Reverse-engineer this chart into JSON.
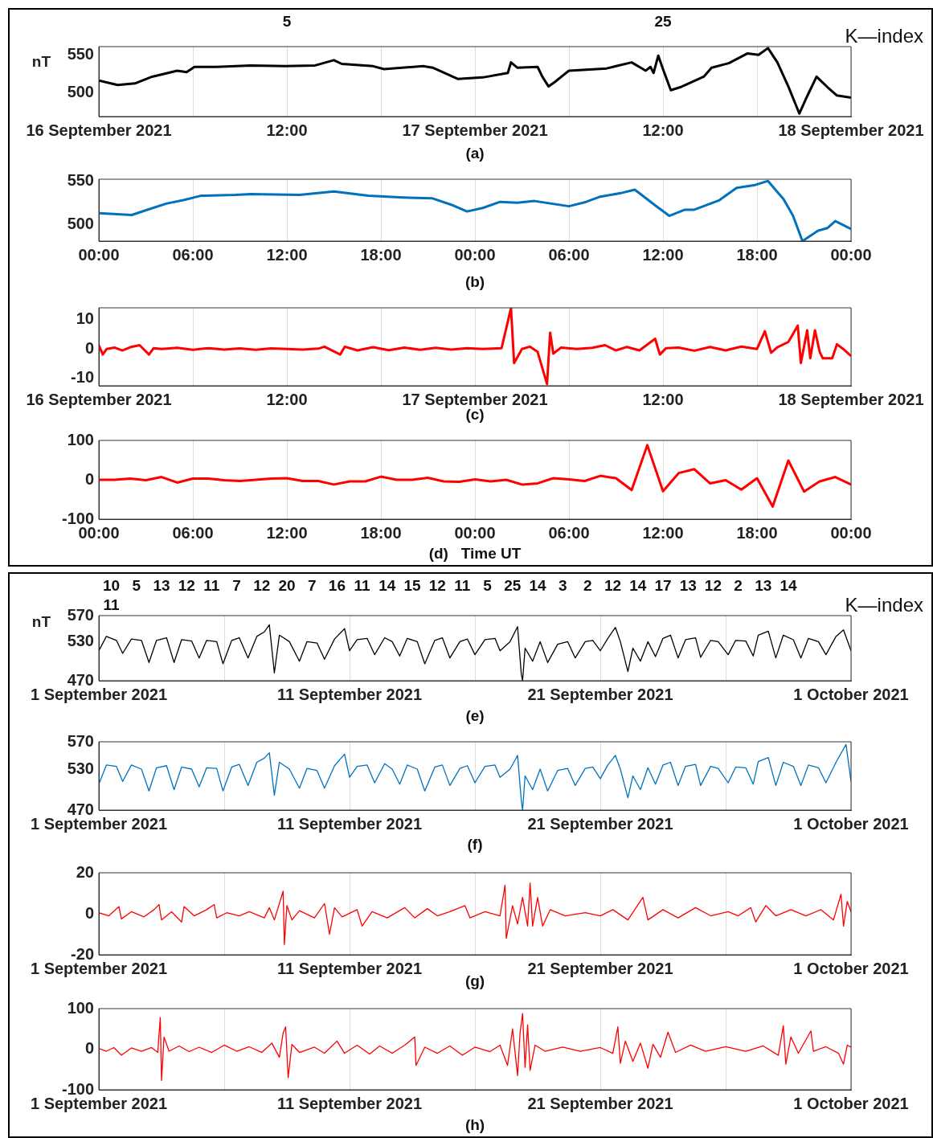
{
  "chart_data": [
    {
      "type": "line",
      "color": "#000000",
      "ylabel": "nT",
      "xlabel": "(a)",
      "grid": "x",
      "xlim": [
        "2021-09-16",
        "2021-09-18"
      ],
      "ylim": [
        468,
        561
      ],
      "yticks": [
        500,
        550
      ],
      "xticks": [
        {
          "value": "2021-09-16",
          "label": "16 September 2021"
        },
        {
          "value": "2021-09-16T06:00",
          "label": null
        },
        {
          "value": "2021-09-16T12:00",
          "label": "12:00"
        },
        {
          "value": "2021-09-16T18:00",
          "label": null
        },
        {
          "value": "2021-09-17",
          "label": "17 September 2021"
        },
        {
          "value": "2021-09-17T06:00",
          "label": null
        },
        {
          "value": "2021-09-17T12:00",
          "label": "12:00"
        },
        {
          "value": "2021-09-17T18:00",
          "label": null
        },
        {
          "value": "2021-09-18",
          "label": "18 September 2021"
        }
      ],
      "annotations": [
        "K—index",
        "5",
        "25"
      ],
      "x": [
        "2021-09-16T00:00",
        "2021-09-16T01:12",
        "2021-09-16T02:18",
        "2021-09-16T03:24",
        "2021-09-16T05:00",
        "2021-09-16T05:36",
        "2021-09-16T06:06",
        "2021-09-16T07:30",
        "2021-09-16T09:42",
        "2021-09-16T11:54",
        "2021-09-16T13:48",
        "2021-09-16T15:00",
        "2021-09-16T15:30",
        "2021-09-16T17:30",
        "2021-09-16T18:12",
        "2021-09-16T20:42",
        "2021-09-16T21:18",
        "2021-09-16T22:54",
        "2021-09-17T00:30",
        "2021-09-17T02:06",
        "2021-09-17T02:18",
        "2021-09-17T02:42",
        "2021-09-17T04:00",
        "2021-09-17T04:18",
        "2021-09-17T04:42",
        "2021-09-17T05:06",
        "2021-09-17T06:00",
        "2021-09-17T08:24",
        "2021-09-17T10:00",
        "2021-09-17T10:54",
        "2021-09-17T11:12",
        "2021-09-17T11:24",
        "2021-09-17T11:42",
        "2021-09-17T12:00",
        "2021-09-17T12:30",
        "2021-09-17T13:06",
        "2021-09-17T14:36",
        "2021-09-17T15:06",
        "2021-09-17T16:12",
        "2021-09-17T17:24",
        "2021-09-17T18:06",
        "2021-09-17T18:42",
        "2021-09-17T19:18",
        "2021-09-17T20:00",
        "2021-09-17T20:42",
        "2021-09-17T21:12",
        "2021-09-17T21:48",
        "2021-09-17T22:30",
        "2021-09-17T23:06",
        "2021-09-18T00:00"
      ],
      "values": [
        516,
        510,
        512,
        521,
        529,
        527,
        534,
        534,
        536,
        535,
        536,
        543,
        538,
        535,
        531,
        535,
        533,
        518,
        520,
        526,
        540,
        533,
        534,
        521,
        508,
        514,
        529,
        532,
        540,
        529,
        534,
        526,
        549,
        531,
        503,
        507,
        521,
        533,
        539,
        552,
        550,
        559,
        540,
        508,
        472,
        495,
        521,
        507,
        496,
        493
      ]
    },
    {
      "type": "line",
      "color": "#0072bd",
      "xlabel": "(b)",
      "grid": "x",
      "xlim": [
        "2021-09-16",
        "2021-09-18"
      ],
      "ylim": [
        481,
        552
      ],
      "yticks": [
        500,
        550
      ],
      "xticks": [
        {
          "value": "2021-09-16T00:00",
          "label": "00:00"
        },
        {
          "value": "2021-09-16T06:00",
          "label": "06:00"
        },
        {
          "value": "2021-09-16T12:00",
          "label": "12:00"
        },
        {
          "value": "2021-09-16T18:00",
          "label": "18:00"
        },
        {
          "value": "2021-09-17T00:00",
          "label": "00:00"
        },
        {
          "value": "2021-09-17T06:00",
          "label": "06:00"
        },
        {
          "value": "2021-09-17T12:00",
          "label": "12:00"
        },
        {
          "value": "2021-09-17T18:00",
          "label": "18:00"
        },
        {
          "value": "2021-09-18T00:00",
          "label": "00:00"
        }
      ],
      "x": [
        "2021-09-16T00:00",
        "2021-09-16T02:06",
        "2021-09-16T03:06",
        "2021-09-16T04:18",
        "2021-09-16T05:24",
        "2021-09-16T06:30",
        "2021-09-16T08:42",
        "2021-09-16T09:42",
        "2021-09-16T12:48",
        "2021-09-16T15:00",
        "2021-09-16T17:12",
        "2021-09-16T19:24",
        "2021-09-16T21:18",
        "2021-09-16T22:36",
        "2021-09-16T23:30",
        "2021-09-17T00:30",
        "2021-09-17T01:36",
        "2021-09-17T02:42",
        "2021-09-17T03:48",
        "2021-09-17T06:00",
        "2021-09-17T07:06",
        "2021-09-17T08:00",
        "2021-09-17T09:18",
        "2021-09-17T10:12",
        "2021-09-17T11:30",
        "2021-09-17T12:24",
        "2021-09-17T13:24",
        "2021-09-17T14:00",
        "2021-09-17T15:36",
        "2021-09-17T16:42",
        "2021-09-17T17:48",
        "2021-09-17T18:42",
        "2021-09-17T19:42",
        "2021-09-17T20:18",
        "2021-09-17T20:54",
        "2021-09-17T21:54",
        "2021-09-17T22:30",
        "2021-09-17T23:00",
        "2021-09-18T00:00"
      ],
      "values": [
        513,
        511,
        517,
        524,
        528,
        533,
        534,
        535,
        534,
        538,
        533,
        531,
        530,
        522,
        515,
        519,
        526,
        525,
        527,
        521,
        526,
        532,
        536,
        540,
        522,
        510,
        517,
        517,
        528,
        542,
        545,
        550,
        529,
        510,
        481,
        493,
        496,
        504,
        495
      ]
    },
    {
      "type": "line",
      "color": "#ff0000",
      "xlabel": "(c)",
      "grid": "x",
      "xlim": [
        "2021-09-16",
        "2021-09-18"
      ],
      "ylim": [
        -12.6,
        14.1
      ],
      "yticks": [
        -10,
        0,
        10
      ],
      "xticks": [
        {
          "value": "2021-09-16",
          "label": "16 September 2021"
        },
        {
          "value": "2021-09-16T06:00",
          "label": null
        },
        {
          "value": "2021-09-16T12:00",
          "label": "12:00"
        },
        {
          "value": "2021-09-16T18:00",
          "label": null
        },
        {
          "value": "2021-09-17",
          "label": "17 September 2021"
        },
        {
          "value": "2021-09-17T06:00",
          "label": null
        },
        {
          "value": "2021-09-17T12:00",
          "label": "12:00"
        },
        {
          "value": "2021-09-17T18:00",
          "label": null
        },
        {
          "value": "2021-09-18",
          "label": "18 September 2021"
        }
      ],
      "x": [
        "2021-09-16T00:00",
        "2021-09-16T00:15",
        "2021-09-16T00:30",
        "2021-09-16T01:00",
        "2021-09-16T01:30",
        "2021-09-16T02:00",
        "2021-09-16T02:36",
        "2021-09-16T03:12",
        "2021-09-16T03:30",
        "2021-09-16T04:00",
        "2021-09-16T05:00",
        "2021-09-16T06:00",
        "2021-09-16T07:00",
        "2021-09-16T08:00",
        "2021-09-16T09:00",
        "2021-09-16T10:00",
        "2021-09-16T11:00",
        "2021-09-16T12:00",
        "2021-09-16T13:00",
        "2021-09-16T14:00",
        "2021-09-16T14:24",
        "2021-09-16T15:24",
        "2021-09-16T15:42",
        "2021-09-16T16:30",
        "2021-09-16T17:30",
        "2021-09-16T18:30",
        "2021-09-16T19:30",
        "2021-09-16T20:30",
        "2021-09-16T21:30",
        "2021-09-16T22:30",
        "2021-09-16T23:30",
        "2021-09-17T00:30",
        "2021-09-17T01:42",
        "2021-09-17T02:18",
        "2021-09-17T02:30",
        "2021-09-17T03:00",
        "2021-09-17T03:30",
        "2021-09-17T04:00",
        "2021-09-17T04:36",
        "2021-09-17T04:48",
        "2021-09-17T05:00",
        "2021-09-17T05:30",
        "2021-09-17T06:30",
        "2021-09-17T07:30",
        "2021-09-17T08:18",
        "2021-09-17T09:00",
        "2021-09-17T09:42",
        "2021-09-17T10:30",
        "2021-09-17T11:30",
        "2021-09-17T11:48",
        "2021-09-17T12:12",
        "2021-09-17T13:00",
        "2021-09-17T14:00",
        "2021-09-17T15:00",
        "2021-09-17T16:00",
        "2021-09-17T17:00",
        "2021-09-17T18:00",
        "2021-09-17T18:30",
        "2021-09-17T18:54",
        "2021-09-17T19:18",
        "2021-09-17T20:00",
        "2021-09-17T20:36",
        "2021-09-17T20:48",
        "2021-09-17T21:12",
        "2021-09-17T21:24",
        "2021-09-17T21:42",
        "2021-09-17T22:00",
        "2021-09-17T22:12",
        "2021-09-17T22:48",
        "2021-09-17T23:06",
        "2021-09-17T23:30",
        "2021-09-18T00:00"
      ],
      "values": [
        1.3,
        -1.9,
        0,
        0.5,
        -0.5,
        0.6,
        1.3,
        -1.9,
        0.3,
        0,
        0.4,
        -0.3,
        0.3,
        -0.2,
        0.2,
        -0.3,
        0.2,
        0,
        -0.2,
        0.1,
        0.8,
        -1.9,
        0.8,
        -0.5,
        0.6,
        -0.4,
        0.5,
        -0.3,
        0.4,
        -0.2,
        0.3,
        0,
        0.3,
        14,
        -4.8,
        0,
        0.8,
        -1,
        -12,
        5.6,
        -1.6,
        0.5,
        0,
        0.4,
        1.3,
        -0.5,
        0.7,
        -0.5,
        3.5,
        -1.9,
        0.3,
        0.5,
        -0.6,
        0.7,
        -0.5,
        0.8,
        0,
        6.1,
        -1.3,
        0.6,
        2.4,
        8,
        -4.8,
        6.4,
        -3.2,
        6.4,
        -1,
        -3.2,
        -3.2,
        1.6,
        0,
        -2.4
      ]
    },
    {
      "type": "line",
      "color": "#ff0000",
      "xlabel": "(d)   Time UT",
      "grid": "x",
      "xlim": [
        "2021-09-16",
        "2021-09-18"
      ],
      "ylim": [
        -100,
        100
      ],
      "yticks": [
        -100,
        0,
        100
      ],
      "xticks": [
        {
          "value": "2021-09-16T00:00",
          "label": "00:00"
        },
        {
          "value": "2021-09-16T06:00",
          "label": "06:00"
        },
        {
          "value": "2021-09-16T12:00",
          "label": "12:00"
        },
        {
          "value": "2021-09-16T18:00",
          "label": "18:00"
        },
        {
          "value": "2021-09-17T00:00",
          "label": "00:00"
        },
        {
          "value": "2021-09-17T06:00",
          "label": "06:00"
        },
        {
          "value": "2021-09-17T12:00",
          "label": "12:00"
        },
        {
          "value": "2021-09-17T18:00",
          "label": "18:00"
        },
        {
          "value": "2021-09-18T00:00",
          "label": "00:00"
        }
      ],
      "x": [
        "2021-09-16T00:00",
        "2021-09-16T01:00",
        "2021-09-16T02:00",
        "2021-09-16T03:00",
        "2021-09-16T04:00",
        "2021-09-16T05:00",
        "2021-09-16T06:00",
        "2021-09-16T07:00",
        "2021-09-16T08:00",
        "2021-09-16T09:00",
        "2021-09-16T10:00",
        "2021-09-16T11:00",
        "2021-09-16T12:00",
        "2021-09-16T13:00",
        "2021-09-16T14:00",
        "2021-09-16T15:00",
        "2021-09-16T16:00",
        "2021-09-16T17:00",
        "2021-09-16T18:00",
        "2021-09-16T19:00",
        "2021-09-16T20:00",
        "2021-09-16T21:00",
        "2021-09-16T22:00",
        "2021-09-16T23:00",
        "2021-09-17T00:00",
        "2021-09-17T01:00",
        "2021-09-17T02:00",
        "2021-09-17T03:00",
        "2021-09-17T04:00",
        "2021-09-17T05:00",
        "2021-09-17T06:00",
        "2021-09-17T07:00",
        "2021-09-17T08:00",
        "2021-09-17T09:00",
        "2021-09-17T10:00",
        "2021-09-17T11:00",
        "2021-09-17T12:00",
        "2021-09-17T13:00",
        "2021-09-17T14:00",
        "2021-09-17T15:00",
        "2021-09-17T16:00",
        "2021-09-17T17:00",
        "2021-09-17T18:00",
        "2021-09-17T19:00",
        "2021-09-17T20:00",
        "2021-09-17T21:00",
        "2021-09-17T22:00",
        "2021-09-17T23:00",
        "2021-09-18T00:00"
      ],
      "values": [
        0,
        0,
        3,
        -1,
        7,
        -7,
        3,
        3,
        -1,
        -3,
        0,
        3,
        4,
        -3,
        -3,
        -12,
        -4,
        -4,
        8,
        0,
        0,
        5,
        -4,
        -5,
        1,
        -4,
        0,
        -12,
        -9,
        4,
        1,
        -3,
        10,
        4,
        -26,
        88,
        -29,
        17,
        27,
        -9,
        -1,
        -25,
        4,
        -68,
        49,
        -30,
        -4,
        7,
        -12
      ]
    },
    {
      "type": "line",
      "color": "#000000",
      "ylabel": "nT",
      "xlabel": "(e)",
      "grid": "x",
      "xlim": [
        "2021-09-01",
        "2021-10-01"
      ],
      "ylim": [
        470,
        570
      ],
      "yticks": [
        470,
        530,
        570
      ],
      "xticks": [
        {
          "value": "2021-09-01",
          "label": "1 September 2021"
        },
        {
          "value": "2021-09-06",
          "label": null
        },
        {
          "value": "2021-09-11",
          "label": "11 September 2021"
        },
        {
          "value": "2021-09-16",
          "label": null
        },
        {
          "value": "2021-09-21",
          "label": "21 September 2021"
        },
        {
          "value": "2021-09-26",
          "label": null
        },
        {
          "value": "2021-10-01",
          "label": "1 October 2021"
        }
      ],
      "annotations": [
        "K—index",
        "10",
        "5",
        "13",
        "12",
        "11",
        "7",
        "12",
        "20",
        "7",
        "16",
        "11",
        "14",
        "15",
        "12",
        "11",
        "5",
        "25",
        "14",
        "3",
        "2",
        "12",
        "14",
        "17",
        "13",
        "12",
        "2",
        "13",
        "14",
        "11"
      ],
      "x": [
        "2021-09-01T00:00",
        "2021-09-01T07:12",
        "2021-09-01T16:48",
        "2021-09-01T22:48",
        "2021-09-02T07:12",
        "2021-09-02T16:48",
        "2021-09-03T00:00",
        "2021-09-03T07:12",
        "2021-09-03T16:48",
        "2021-09-04T00:00",
        "2021-09-04T07:12",
        "2021-09-04T16:48",
        "2021-09-05T00:00",
        "2021-09-05T07:12",
        "2021-09-05T16:48",
        "2021-09-05T22:48",
        "2021-09-06T07:12",
        "2021-09-06T14:24",
        "2021-09-06T22:48",
        "2021-09-07T07:12",
        "2021-09-07T14:24",
        "2021-09-07T19:12",
        "2021-09-08T00:00",
        "2021-09-08T04:48",
        "2021-09-08T14:24",
        "2021-09-09T00:00",
        "2021-09-09T07:12",
        "2021-09-09T16:48",
        "2021-09-10T00:00",
        "2021-09-10T09:36",
        "2021-09-10T19:12",
        "2021-09-11T00:00",
        "2021-09-11T07:12",
        "2021-09-11T16:48",
        "2021-09-12T00:00",
        "2021-09-12T09:36",
        "2021-09-12T16:48",
        "2021-09-13T00:00",
        "2021-09-13T07:12",
        "2021-09-13T16:48",
        "2021-09-14T00:00",
        "2021-09-14T09:36",
        "2021-09-14T16:48",
        "2021-09-15T00:00",
        "2021-09-15T09:36",
        "2021-09-15T16:48",
        "2021-09-16T00:00",
        "2021-09-16T09:36",
        "2021-09-16T19:12",
        "2021-09-17T00:00",
        "2021-09-17T09:36",
        "2021-09-17T16:48",
        "2021-09-17T20:24",
        "2021-09-17T21:36",
        "2021-09-18T00:00",
        "2021-09-18T07:12",
        "2021-09-18T14:24",
        "2021-09-18T21:36",
        "2021-09-19T07:12",
        "2021-09-19T16:48",
        "2021-09-20T00:00",
        "2021-09-20T09:36",
        "2021-09-20T16:48",
        "2021-09-21T00:00",
        "2021-09-21T07:12",
        "2021-09-21T14:24",
        "2021-09-21T19:12",
        "2021-09-22T02:24",
        "2021-09-22T07:12",
        "2021-09-22T14:24",
        "2021-09-22T21:36",
        "2021-09-23T04:48",
        "2021-09-23T12:00",
        "2021-09-23T19:12",
        "2021-09-24T02:24",
        "2021-09-24T09:36",
        "2021-09-24T19:12",
        "2021-09-25T00:00",
        "2021-09-25T09:36",
        "2021-09-25T16:48",
        "2021-09-26T02:24",
        "2021-09-26T09:36",
        "2021-09-26T19:12",
        "2021-09-27T02:24",
        "2021-09-27T07:12",
        "2021-09-27T16:48",
        "2021-09-28T00:00",
        "2021-09-28T07:12",
        "2021-09-28T16:48",
        "2021-09-29T00:00",
        "2021-09-29T07:12",
        "2021-09-29T16:48",
        "2021-09-30T00:00",
        "2021-09-30T09:36",
        "2021-09-30T16:48",
        "2021-10-01T00:00"
      ],
      "values": [
        516,
        538,
        532,
        512,
        534,
        532,
        498,
        532,
        536,
        498,
        533,
        531,
        505,
        532,
        530,
        496,
        532,
        536,
        505,
        538,
        545,
        556,
        482,
        540,
        530,
        500,
        530,
        528,
        503,
        534,
        550,
        516,
        533,
        535,
        510,
        536,
        530,
        508,
        535,
        530,
        496,
        532,
        536,
        505,
        530,
        534,
        510,
        533,
        535,
        516,
        530,
        553,
        480,
        470,
        520,
        500,
        530,
        498,
        526,
        530,
        505,
        530,
        532,
        516,
        535,
        552,
        530,
        484,
        520,
        500,
        530,
        507,
        535,
        540,
        505,
        533,
        536,
        506,
        532,
        530,
        510,
        532,
        531,
        508,
        540,
        546,
        505,
        540,
        533,
        505,
        535,
        530,
        510,
        538,
        548,
        516
      ]
    },
    {
      "type": "line",
      "color": "#0072bd",
      "xlabel": "(f)",
      "grid": "x",
      "xlim": [
        "2021-09-01",
        "2021-10-01"
      ],
      "ylim": [
        470,
        570
      ],
      "yticks": [
        470,
        530,
        570
      ],
      "xticks": [
        {
          "value": "2021-09-01",
          "label": "1 September 2021"
        },
        {
          "value": "2021-09-06",
          "label": null
        },
        {
          "value": "2021-09-11",
          "label": "11 September 2021"
        },
        {
          "value": "2021-09-16",
          "label": null
        },
        {
          "value": "2021-09-21",
          "label": "21 September 2021"
        },
        {
          "value": "2021-09-26",
          "label": null
        },
        {
          "value": "2021-10-01",
          "label": "1 October 2021"
        }
      ],
      "x": [
        "2021-09-01T00:00",
        "2021-09-01T07:12",
        "2021-09-01T16:48",
        "2021-09-01T22:48",
        "2021-09-02T07:12",
        "2021-09-02T16:48",
        "2021-09-03T00:00",
        "2021-09-03T07:12",
        "2021-09-03T16:48",
        "2021-09-04T00:00",
        "2021-09-04T07:12",
        "2021-09-04T16:48",
        "2021-09-05T00:00",
        "2021-09-05T07:12",
        "2021-09-05T16:48",
        "2021-09-05T22:48",
        "2021-09-06T07:12",
        "2021-09-06T14:24",
        "2021-09-06T22:48",
        "2021-09-07T07:12",
        "2021-09-07T14:24",
        "2021-09-07T19:12",
        "2021-09-08T00:00",
        "2021-09-08T04:48",
        "2021-09-08T14:24",
        "2021-09-09T00:00",
        "2021-09-09T07:12",
        "2021-09-09T16:48",
        "2021-09-10T00:00",
        "2021-09-10T09:36",
        "2021-09-10T19:12",
        "2021-09-11T00:00",
        "2021-09-11T07:12",
        "2021-09-11T16:48",
        "2021-09-12T00:00",
        "2021-09-12T09:36",
        "2021-09-12T16:48",
        "2021-09-13T00:00",
        "2021-09-13T07:12",
        "2021-09-13T16:48",
        "2021-09-14T00:00",
        "2021-09-14T09:36",
        "2021-09-14T16:48",
        "2021-09-15T00:00",
        "2021-09-15T09:36",
        "2021-09-15T16:48",
        "2021-09-16T00:00",
        "2021-09-16T09:36",
        "2021-09-16T19:12",
        "2021-09-17T00:00",
        "2021-09-17T09:36",
        "2021-09-17T16:48",
        "2021-09-17T20:24",
        "2021-09-17T21:36",
        "2021-09-18T00:00",
        "2021-09-18T07:12",
        "2021-09-18T14:24",
        "2021-09-18T21:36",
        "2021-09-19T07:12",
        "2021-09-19T16:48",
        "2021-09-20T00:00",
        "2021-09-20T09:36",
        "2021-09-20T16:48",
        "2021-09-21T00:00",
        "2021-09-21T07:12",
        "2021-09-21T14:24",
        "2021-09-21T19:12",
        "2021-09-22T02:24",
        "2021-09-22T07:12",
        "2021-09-22T14:24",
        "2021-09-22T21:36",
        "2021-09-23T04:48",
        "2021-09-23T12:00",
        "2021-09-23T19:12",
        "2021-09-24T02:24",
        "2021-09-24T09:36",
        "2021-09-24T19:12",
        "2021-09-25T00:00",
        "2021-09-25T09:36",
        "2021-09-25T16:48",
        "2021-09-26T02:24",
        "2021-09-26T09:36",
        "2021-09-26T19:12",
        "2021-09-27T02:24",
        "2021-09-27T07:12",
        "2021-09-27T16:48",
        "2021-09-28T00:00",
        "2021-09-28T07:12",
        "2021-09-28T16:48",
        "2021-09-29T00:00",
        "2021-09-29T07:12",
        "2021-09-29T16:48",
        "2021-09-30T00:00",
        "2021-09-30T09:36",
        "2021-09-30T19:12",
        "2021-10-01T00:00"
      ],
      "values": [
        508,
        536,
        534,
        512,
        536,
        530,
        498,
        532,
        535,
        500,
        533,
        530,
        504,
        532,
        531,
        498,
        533,
        537,
        506,
        540,
        546,
        554,
        492,
        540,
        530,
        502,
        531,
        528,
        502,
        535,
        552,
        518,
        534,
        536,
        510,
        538,
        530,
        508,
        536,
        530,
        498,
        533,
        536,
        506,
        531,
        535,
        510,
        534,
        536,
        518,
        530,
        550,
        484,
        470,
        520,
        500,
        530,
        498,
        528,
        531,
        506,
        531,
        533,
        516,
        536,
        550,
        530,
        488,
        520,
        500,
        532,
        508,
        536,
        540,
        506,
        534,
        537,
        506,
        534,
        531,
        510,
        533,
        532,
        508,
        541,
        547,
        506,
        540,
        534,
        506,
        536,
        532,
        510,
        540,
        566,
        512
      ]
    },
    {
      "type": "line",
      "color": "#ff0000",
      "xlabel": "(g)",
      "grid": "x",
      "xlim": [
        "2021-09-01",
        "2021-10-01"
      ],
      "ylim": [
        -20,
        20
      ],
      "yticks": [
        -20,
        0,
        20
      ],
      "xticks": [
        {
          "value": "2021-09-01",
          "label": "1 September 2021"
        },
        {
          "value": "2021-09-06",
          "label": null
        },
        {
          "value": "2021-09-11",
          "label": "11 September 2021"
        },
        {
          "value": "2021-09-16",
          "label": null
        },
        {
          "value": "2021-09-21",
          "label": "21 September 2021"
        },
        {
          "value": "2021-09-26",
          "label": null
        },
        {
          "value": "2021-10-01",
          "label": "1 October 2021"
        }
      ],
      "x": [
        "2021-09-01T00:00",
        "2021-09-01T09:36",
        "2021-09-01T19:12",
        "2021-09-01T21:36",
        "2021-09-02T07:12",
        "2021-09-02T19:12",
        "2021-09-03T04:48",
        "2021-09-03T09:36",
        "2021-09-03T12:00",
        "2021-09-03T21:36",
        "2021-09-04T07:12",
        "2021-09-04T09:36",
        "2021-09-04T19:12",
        "2021-09-05T07:12",
        "2021-09-05T14:24",
        "2021-09-05T16:48",
        "2021-09-06T02:24",
        "2021-09-06T14:24",
        "2021-09-07T00:00",
        "2021-09-07T14:24",
        "2021-09-07T19:12",
        "2021-09-08T00:00",
        "2021-09-08T04:48",
        "2021-09-08T08:24",
        "2021-09-08T09:36",
        "2021-09-08T12:00",
        "2021-09-08T16:48",
        "2021-09-09T00:00",
        "2021-09-09T14:24",
        "2021-09-10T00:00",
        "2021-09-10T04:48",
        "2021-09-10T09:36",
        "2021-09-10T16:48",
        "2021-09-11T07:12",
        "2021-09-11T12:00",
        "2021-09-11T21:36",
        "2021-09-12T12:00",
        "2021-09-13T04:48",
        "2021-09-13T14:24",
        "2021-09-14T02:24",
        "2021-09-14T12:00",
        "2021-09-15T00:00",
        "2021-09-15T14:24",
        "2021-09-15T19:12",
        "2021-09-16T09:36",
        "2021-09-17T00:00",
        "2021-09-17T04:48",
        "2021-09-17T06:00",
        "2021-09-17T12:00",
        "2021-09-17T16:48",
        "2021-09-17T21:36",
        "2021-09-18T02:24",
        "2021-09-18T04:48",
        "2021-09-18T07:12",
        "2021-09-18T12:00",
        "2021-09-18T16:48",
        "2021-09-19T00:00",
        "2021-09-19T14:24",
        "2021-09-20T09:36",
        "2021-09-21T00:00",
        "2021-09-21T12:00",
        "2021-09-22T02:24",
        "2021-09-22T16:48",
        "2021-09-22T21:36",
        "2021-09-23T12:00",
        "2021-09-24T02:24",
        "2021-09-24T19:12",
        "2021-09-25T09:36",
        "2021-09-26T02:24",
        "2021-09-26T12:00",
        "2021-09-27T00:00",
        "2021-09-27T04:48",
        "2021-09-27T14:24",
        "2021-09-28T00:00",
        "2021-09-28T14:24",
        "2021-09-29T04:48",
        "2021-09-29T19:12",
        "2021-09-30T07:12",
        "2021-09-30T14:24",
        "2021-09-30T16:48",
        "2021-09-30T20:24",
        "2021-10-01T00:00"
      ],
      "values": [
        0.5,
        -1,
        3.5,
        -2.5,
        1,
        -1.5,
        2,
        4.5,
        -3,
        1,
        -4,
        3.5,
        -1,
        2,
        4.5,
        -2,
        0.5,
        -1,
        1,
        -2,
        3,
        -3,
        5,
        11,
        -15,
        4,
        -3,
        1.5,
        -2,
        5,
        -10,
        3,
        -1.5,
        2,
        -6,
        1,
        -2,
        3,
        -2,
        2.5,
        -1,
        1,
        4,
        -2,
        1,
        -1,
        14,
        -12,
        4,
        -5,
        8,
        -6,
        15,
        -6,
        8,
        -6,
        2,
        -1,
        0.5,
        -1,
        2,
        -3,
        8,
        -3,
        2,
        -2,
        3,
        -1,
        1,
        -1,
        3,
        -4,
        4,
        -1,
        2,
        -1,
        2,
        -3,
        9.5,
        -6,
        6,
        1
      ]
    },
    {
      "type": "line",
      "color": "#ff0000",
      "xlabel": "(h)",
      "grid": "x",
      "xlim": [
        "2021-09-01",
        "2021-10-01"
      ],
      "ylim": [
        -100,
        100
      ],
      "yticks": [
        -100,
        0,
        100
      ],
      "xticks": [
        {
          "value": "2021-09-01",
          "label": "1 September 2021"
        },
        {
          "value": "2021-09-06",
          "label": null
        },
        {
          "value": "2021-09-11",
          "label": "11 September 2021"
        },
        {
          "value": "2021-09-16",
          "label": null
        },
        {
          "value": "2021-09-21",
          "label": "21 September 2021"
        },
        {
          "value": "2021-09-26",
          "label": null
        },
        {
          "value": "2021-10-01",
          "label": "1 October 2021"
        }
      ],
      "x": [
        "2021-09-01T00:00",
        "2021-09-01T07:12",
        "2021-09-01T14:24",
        "2021-09-01T21:36",
        "2021-09-02T07:12",
        "2021-09-02T16:48",
        "2021-09-03T02:24",
        "2021-09-03T08:24",
        "2021-09-03T10:48",
        "2021-09-03T12:00",
        "2021-09-03T14:24",
        "2021-09-03T19:12",
        "2021-09-04T04:48",
        "2021-09-04T14:24",
        "2021-09-05T00:00",
        "2021-09-05T12:00",
        "2021-09-06T00:00",
        "2021-09-06T12:00",
        "2021-09-07T00:00",
        "2021-09-07T12:00",
        "2021-09-07T21:36",
        "2021-09-08T04:48",
        "2021-09-08T08:24",
        "2021-09-08T10:48",
        "2021-09-08T13:12",
        "2021-09-08T16:48",
        "2021-09-09T00:00",
        "2021-09-09T14:24",
        "2021-09-10T00:00",
        "2021-09-10T12:00",
        "2021-09-10T19:12",
        "2021-09-11T07:12",
        "2021-09-11T19:12",
        "2021-09-12T04:48",
        "2021-09-12T16:48",
        "2021-09-13T04:48",
        "2021-09-13T14:24",
        "2021-09-13T15:36",
        "2021-09-14T00:00",
        "2021-09-14T12:00",
        "2021-09-15T00:00",
        "2021-09-15T12:00",
        "2021-09-16T00:00",
        "2021-09-16T14:24",
        "2021-09-17T00:00",
        "2021-09-17T07:12",
        "2021-09-17T12:00",
        "2021-09-17T16:48",
        "2021-09-17T19:12",
        "2021-09-17T21:36",
        "2021-09-18T00:00",
        "2021-09-18T02:24",
        "2021-09-18T04:48",
        "2021-09-18T09:36",
        "2021-09-18T19:12",
        "2021-09-19T12:00",
        "2021-09-20T04:48",
        "2021-09-21T00:00",
        "2021-09-21T12:00",
        "2021-09-21T16:48",
        "2021-09-21T19:12",
        "2021-09-22T00:00",
        "2021-09-22T07:12",
        "2021-09-22T14:24",
        "2021-09-22T21:36",
        "2021-09-23T02:24",
        "2021-09-23T09:36",
        "2021-09-23T16:48",
        "2021-09-24T00:00",
        "2021-09-24T14:24",
        "2021-09-25T04:48",
        "2021-09-26T00:00",
        "2021-09-26T19:12",
        "2021-09-27T12:00",
        "2021-09-28T02:24",
        "2021-09-28T07:12",
        "2021-09-28T09:36",
        "2021-09-28T14:24",
        "2021-09-28T21:36",
        "2021-09-29T09:36",
        "2021-09-29T12:00",
        "2021-09-30T00:00",
        "2021-09-30T12:00",
        "2021-09-30T16:48",
        "2021-09-30T20:24",
        "2021-10-01T00:00"
      ],
      "values": [
        2,
        -5,
        4,
        -15,
        3,
        -5,
        4,
        -8,
        78,
        -77,
        30,
        -5,
        8,
        -6,
        5,
        -8,
        10,
        -5,
        6,
        -8,
        15,
        -20,
        40,
        55,
        -70,
        12,
        -8,
        5,
        -10,
        20,
        -10,
        10,
        -12,
        8,
        -10,
        10,
        30,
        -40,
        5,
        -10,
        8,
        -15,
        5,
        -6,
        10,
        -40,
        50,
        -65,
        40,
        88,
        -45,
        60,
        -52,
        10,
        -5,
        5,
        -5,
        4,
        -10,
        55,
        -35,
        20,
        -30,
        15,
        -47,
        12,
        -20,
        42,
        -8,
        10,
        -5,
        6,
        -5,
        8,
        -15,
        58,
        -37,
        30,
        -10,
        45,
        -5,
        6,
        -10,
        -37,
        10,
        5
      ]
    }
  ]
}
